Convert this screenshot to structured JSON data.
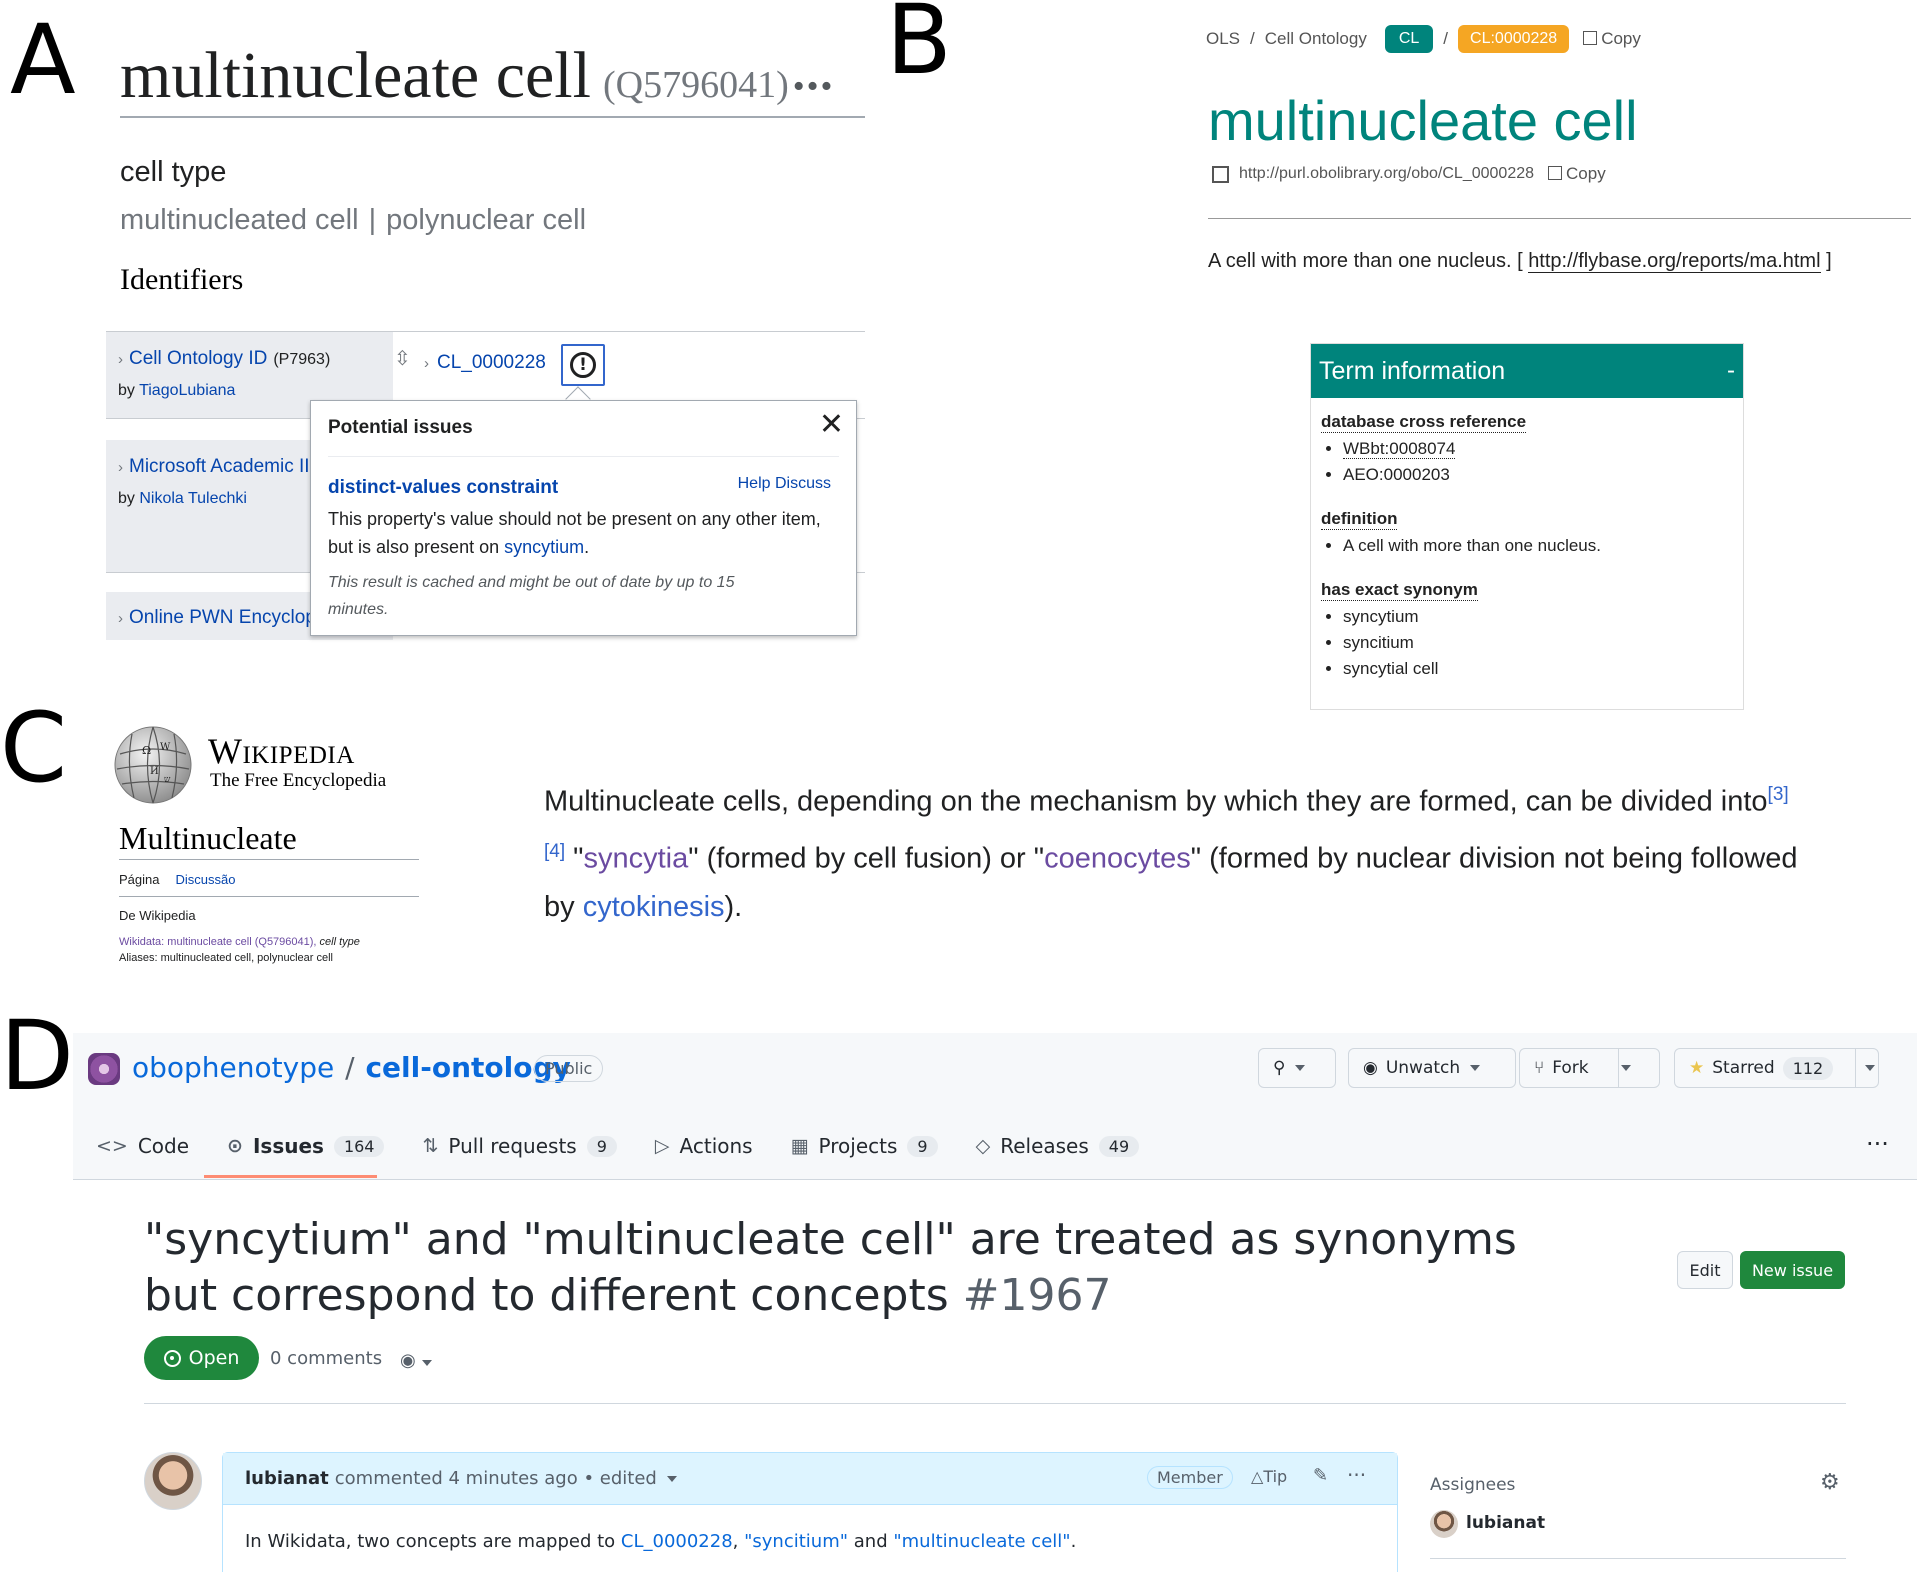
{
  "panel_labels": {
    "a": "A",
    "b": "B",
    "c": "C",
    "d": "D"
  },
  "wikidata": {
    "title": "multinucleate cell",
    "qid": "(Q5796041)",
    "more": "•••",
    "description": "cell type",
    "aliases": [
      "multinucleated cell",
      "polynuclear cell"
    ],
    "alias_separator": "|",
    "section": "Identifiers",
    "properties": [
      {
        "name": "Cell Ontology ID",
        "pid": "(P7963)",
        "by": "by",
        "user": "TiagoLubiana",
        "value": "CL_0000228"
      },
      {
        "name": "Microsoft Academic II",
        "by": "by",
        "user": "Nikola Tulechki"
      },
      {
        "name": "Online PWN Encyclop"
      }
    ],
    "popup": {
      "title": "Potential issues",
      "close": "✕",
      "constraint": "distinct-values constraint",
      "help": "Help",
      "discuss": "Discuss",
      "body_before": "This property's value should not be present on any other item, but is also present on ",
      "body_link": "syncytium",
      "body_after": ".",
      "cache_note": "This result is cached and might be out of date by up to 15 minutes."
    }
  },
  "ols": {
    "breadcrumb": [
      "OLS",
      "Cell Ontology"
    ],
    "pill_ontology": "CL",
    "pill_id": "CL:0000228",
    "copy": "Copy",
    "title": "multinucleate cell",
    "iri": "http://purl.obolibrary.org/obo/CL_0000228",
    "definition_text": "A cell with more than one nucleus. [ ",
    "definition_link": "http://flybase.org/reports/ma.html",
    "definition_end": " ]",
    "term_info": {
      "header": "Term information",
      "collapse": "-",
      "xref_label": "database cross reference",
      "xrefs": [
        "WBbt:0008074",
        "AEO:0000203"
      ],
      "definition_label": "definition",
      "definitions": [
        "A cell with more than one nucleus."
      ],
      "synonym_label": "has exact synonym",
      "synonyms": [
        "syncytium",
        "syncitium",
        "syncytial cell"
      ]
    }
  },
  "wikipedia": {
    "wordmark": "Wikipedia",
    "tagline": "The Free Encyclopedia",
    "article_title": "Multinucleate",
    "tab_page": "Página",
    "tab_talk": "Discussão",
    "from": "De Wikipedia",
    "wikidata_line": "Wikidata: multinucleate cell (Q5796041),",
    "wikidata_type": "cell type",
    "aliases_line": "Aliases: multinucleated cell, polynuclear cell",
    "text_1": "Multinucleate cells, depending on the mechanism by which they are formed, can be divided into",
    "refs": "[3][4]",
    "text_2": " \"",
    "link_syncytia": "syncytia",
    "text_3": "\" (formed by cell fusion) or \"",
    "link_coenocytes": "coenocytes",
    "text_4": "\" (formed by nuclear division not being followed by ",
    "link_cytokinesis": "cytokinesis",
    "text_5": ")."
  },
  "github": {
    "owner": "obophenotype",
    "repo": "cell-ontology",
    "visibility": "Public",
    "unwatch": "Unwatch",
    "fork": "Fork",
    "starred": "Starred",
    "stars": "112",
    "tabs": [
      {
        "label": "Code",
        "icon": "<>"
      },
      {
        "label": "Issues",
        "count": "164",
        "icon": "⊙"
      },
      {
        "label": "Pull requests",
        "count": "9",
        "icon": "⇅"
      },
      {
        "label": "Actions",
        "icon": "▷"
      },
      {
        "label": "Projects",
        "count": "9",
        "icon": "▦"
      },
      {
        "label": "Releases",
        "count": "49",
        "icon": "◇"
      }
    ],
    "more": "···",
    "issue_title": "\"syncytium\" and \"multinucleate cell\" are treated as synonyms but correspond to different concepts",
    "issue_number": "#1967",
    "edit": "Edit",
    "new_issue": "New issue",
    "status": "Open",
    "comments": "0 comments",
    "comment": {
      "author": "lubianat",
      "meta": "commented 4 minutes ago • edited",
      "role": "Member",
      "tip": "Tip",
      "body_1": "In Wikidata, two concepts are mapped to ",
      "link_1": "CL_0000228",
      "body_2": ", ",
      "link_2": "\"syncitium\"",
      "body_3": " and ",
      "link_3": "\"multinucleate cell\"",
      "body_4": "."
    },
    "assignees_label": "Assignees",
    "assignee": "lubianat"
  }
}
